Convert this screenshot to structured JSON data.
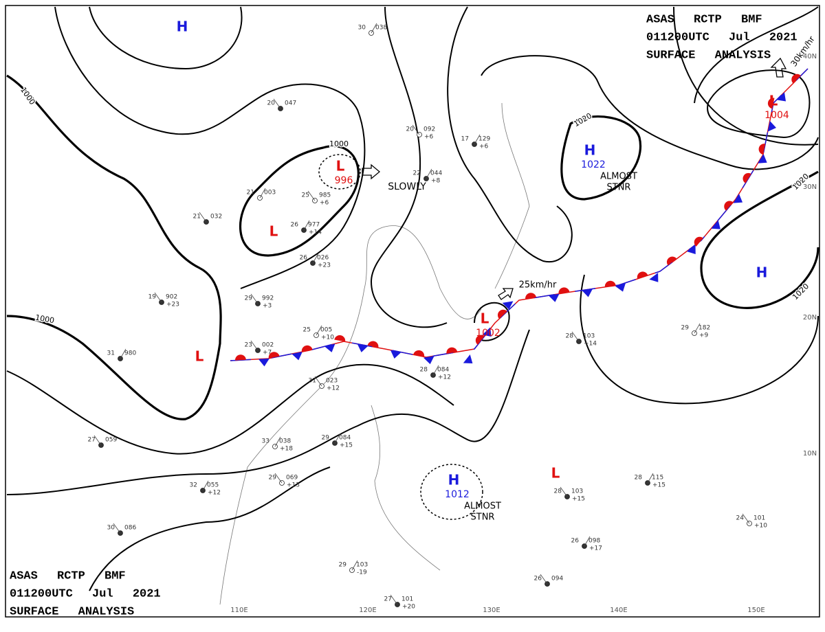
{
  "title_block": [
    "ASAS RCTP BMF",
    "011200UTC Jul 2021",
    "SURFACE ANALYSIS"
  ],
  "systems": [
    {
      "type": "H"
    },
    {
      "type": "L",
      "value": "996"
    },
    {
      "type": "L"
    },
    {
      "type": "L"
    },
    {
      "type": "L",
      "value": "1002"
    },
    {
      "type": "H",
      "value": "1022",
      "note": [
        "ALMOST",
        "STNR"
      ]
    },
    {
      "type": "L",
      "value": "1004"
    },
    {
      "type": "H"
    },
    {
      "type": "H",
      "value": "1012",
      "note": [
        "ALMOST",
        "STNR"
      ]
    },
    {
      "type": "L"
    }
  ],
  "isobar_labels": [
    "1000",
    "1000",
    "1000",
    "1020",
    "1020",
    "1020"
  ],
  "motion_labels": [
    "SLOWLY",
    "25km/hr",
    "30km/hr"
  ],
  "longitude_labels": [
    "110E",
    "120E",
    "130E",
    "140E",
    "150E"
  ],
  "latitude_labels": [
    "10N",
    "20N",
    "30N",
    "40N"
  ],
  "stations": [
    {
      "temp": "30",
      "pressure": "038"
    },
    {
      "temp": "29",
      "pressure": "992",
      "change": "+3"
    },
    {
      "temp": "31",
      "pressure": "980"
    },
    {
      "temp": "31",
      "pressure": "023",
      "change": "+12"
    },
    {
      "temp": "28",
      "pressure": "084",
      "change": "+12"
    },
    {
      "temp": "27",
      "pressure": "059"
    },
    {
      "temp": "25",
      "pressure": "005",
      "change": "+10"
    },
    {
      "temp": "23",
      "pressure": "002",
      "change": "+7"
    },
    {
      "temp": "22",
      "pressure": "044",
      "change": "+8"
    },
    {
      "temp": "20",
      "pressure": "092",
      "change": "+6"
    },
    {
      "temp": "17",
      "pressure": "129",
      "change": "+6"
    },
    {
      "temp": "28",
      "pressure": "103",
      "change": "+14"
    },
    {
      "temp": "29",
      "pressure": "182",
      "change": "+9"
    },
    {
      "temp": "28",
      "pressure": "103",
      "change": "+15"
    },
    {
      "temp": "28",
      "pressure": "115",
      "change": "+15"
    },
    {
      "temp": "24",
      "pressure": "101",
      "change": "+10"
    },
    {
      "temp": "26",
      "pressure": "098",
      "change": "+17"
    },
    {
      "temp": "26",
      "pressure": "094"
    },
    {
      "temp": "29",
      "pressure": "103",
      "change": "-19"
    },
    {
      "temp": "27",
      "pressure": "101",
      "change": "+20"
    },
    {
      "temp": "29",
      "pressure": "084",
      "change": "+15"
    },
    {
      "temp": "29",
      "pressure": "069",
      "change": "+13"
    },
    {
      "temp": "32",
      "pressure": "055",
      "change": "+12"
    },
    {
      "temp": "30",
      "pressure": "086"
    },
    {
      "temp": "33",
      "pressure": "038",
      "change": "+18"
    },
    {
      "temp": "20",
      "pressure": "047"
    },
    {
      "temp": "26",
      "pressure": "977",
      "change": "+14"
    },
    {
      "temp": "25",
      "pressure": "985",
      "change": "+6"
    },
    {
      "temp": "26",
      "pressure": "026",
      "change": "+23"
    },
    {
      "temp": "19",
      "pressure": "902",
      "change": "+23"
    },
    {
      "temp": "21",
      "pressure": "003"
    },
    {
      "temp": "21",
      "pressure": "032"
    }
  ]
}
